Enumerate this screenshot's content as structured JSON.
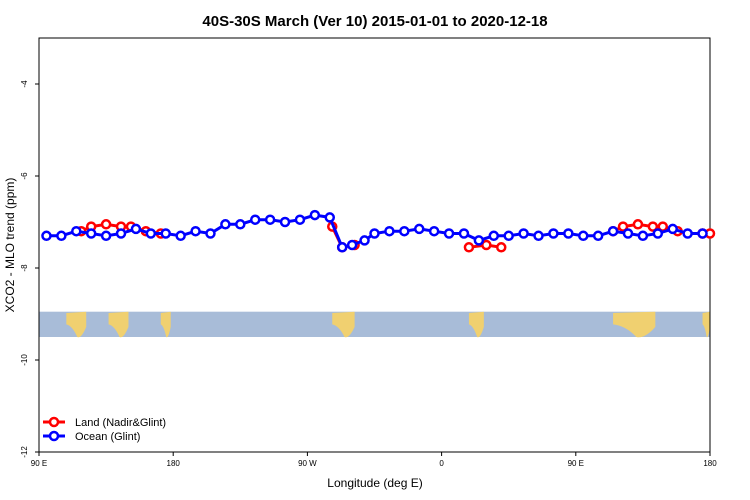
{
  "chart_data": {
    "type": "line",
    "title": "40S-30S March (Ver 10)   2015-01-01 to 2020-12-18",
    "xlabel": "Longitude (deg E)",
    "ylabel": "XCO2 - MLO trend (ppm)",
    "xlim": [
      -90,
      180
    ],
    "ylim": [
      -12,
      -3
    ],
    "x_ticks": [
      {
        "value": -90,
        "label": "90 E"
      },
      {
        "value": -36,
        "label": "180"
      },
      {
        "value": 18,
        "label": "90 W"
      },
      {
        "value": 72,
        "label": "0"
      },
      {
        "value": 126,
        "label": "90 E"
      },
      {
        "value": 180,
        "label": "180"
      }
    ],
    "y_ticks": [
      {
        "value": -4,
        "label": "-4"
      },
      {
        "value": -6,
        "label": "-6"
      },
      {
        "value": -8,
        "label": "-8"
      },
      {
        "value": -10,
        "label": "-10"
      },
      {
        "value": -12,
        "label": "-12"
      }
    ],
    "legend": {
      "position": "bottom-left"
    },
    "series": [
      {
        "name": "Land (Nadir&Glint)",
        "color": "#ff0000",
        "segments": [
          [
            {
              "x": -73,
              "y": -7.2
            },
            {
              "x": -69,
              "y": -7.1
            },
            {
              "x": -63,
              "y": -7.05
            },
            {
              "x": -57,
              "y": -7.1
            },
            {
              "x": -53,
              "y": -7.1
            },
            {
              "x": -47,
              "y": -7.2
            },
            {
              "x": -41,
              "y": -7.25
            }
          ],
          [
            {
              "x": 28,
              "y": -7.1
            },
            {
              "x": 32,
              "y": -7.55
            },
            {
              "x": 37,
              "y": -7.5
            }
          ],
          [
            {
              "x": 83,
              "y": -7.55
            },
            {
              "x": 90,
              "y": -7.5
            },
            {
              "x": 96,
              "y": -7.55
            }
          ],
          [
            {
              "x": 141,
              "y": -7.2
            },
            {
              "x": 145,
              "y": -7.1
            },
            {
              "x": 151,
              "y": -7.05
            },
            {
              "x": 157,
              "y": -7.1
            },
            {
              "x": 161,
              "y": -7.1
            },
            {
              "x": 167,
              "y": -7.2
            }
          ],
          [
            {
              "x": 177,
              "y": -7.25
            },
            {
              "x": 180,
              "y": -7.25
            }
          ]
        ]
      },
      {
        "name": "Ocean (Glint)",
        "color": "#0000ff",
        "points": [
          {
            "x": -87,
            "y": -7.3
          },
          {
            "x": -81,
            "y": -7.3
          },
          {
            "x": -75,
            "y": -7.2
          },
          {
            "x": -69,
            "y": -7.25
          },
          {
            "x": -63,
            "y": -7.3
          },
          {
            "x": -57,
            "y": -7.25
          },
          {
            "x": -51,
            "y": -7.15
          },
          {
            "x": -45,
            "y": -7.25
          },
          {
            "x": -39,
            "y": -7.25
          },
          {
            "x": -33,
            "y": -7.3
          },
          {
            "x": -27,
            "y": -7.2
          },
          {
            "x": -21,
            "y": -7.25
          },
          {
            "x": -15,
            "y": -7.05
          },
          {
            "x": -9,
            "y": -7.05
          },
          {
            "x": -3,
            "y": -6.95
          },
          {
            "x": 3,
            "y": -6.95
          },
          {
            "x": 9,
            "y": -7.0
          },
          {
            "x": 15,
            "y": -6.95
          },
          {
            "x": 21,
            "y": -6.85
          },
          {
            "x": 27,
            "y": -6.9
          },
          {
            "x": 32,
            "y": -7.55
          },
          {
            "x": 36,
            "y": -7.5
          },
          {
            "x": 41,
            "y": -7.4
          },
          {
            "x": 45,
            "y": -7.25
          },
          {
            "x": 51,
            "y": -7.2
          },
          {
            "x": 57,
            "y": -7.2
          },
          {
            "x": 63,
            "y": -7.15
          },
          {
            "x": 69,
            "y": -7.2
          },
          {
            "x": 75,
            "y": -7.25
          },
          {
            "x": 81,
            "y": -7.25
          },
          {
            "x": 87,
            "y": -7.4
          },
          {
            "x": 93,
            "y": -7.3
          },
          {
            "x": 99,
            "y": -7.3
          },
          {
            "x": 105,
            "y": -7.25
          },
          {
            "x": 111,
            "y": -7.3
          },
          {
            "x": 117,
            "y": -7.25
          },
          {
            "x": 123,
            "y": -7.25
          },
          {
            "x": 129,
            "y": -7.3
          },
          {
            "x": 135,
            "y": -7.3
          },
          {
            "x": 141,
            "y": -7.2
          },
          {
            "x": 147,
            "y": -7.25
          },
          {
            "x": 153,
            "y": -7.3
          },
          {
            "x": 159,
            "y": -7.25
          },
          {
            "x": 165,
            "y": -7.15
          },
          {
            "x": 171,
            "y": -7.25
          },
          {
            "x": 177,
            "y": -7.25
          }
        ]
      }
    ],
    "map_strip": {
      "y_range": [
        -9.5,
        -8.95
      ],
      "ocean_color": "#a8bcd8",
      "land_color": "#f0d070",
      "land_spans": [
        [
          -79,
          -71
        ],
        [
          -62,
          -54
        ],
        [
          -41,
          -37
        ],
        [
          28,
          37
        ],
        [
          83,
          89
        ],
        [
          141,
          158
        ],
        [
          177,
          180
        ]
      ]
    }
  }
}
